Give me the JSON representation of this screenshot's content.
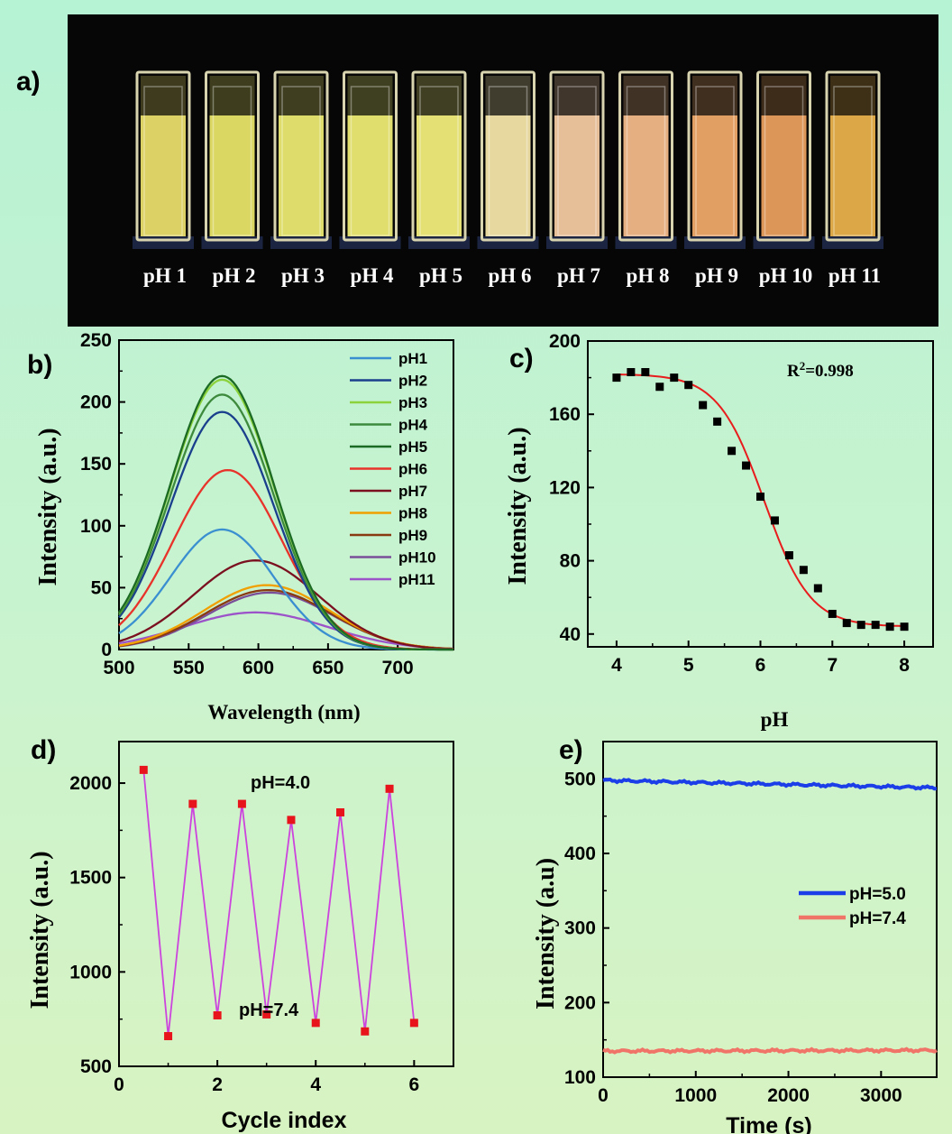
{
  "panel_labels": {
    "a": "a)",
    "b": "b)",
    "c": "c)",
    "d": "d)",
    "e": "e)"
  },
  "photo": {
    "cuvettes": [
      {
        "label": "pH 1",
        "color": "#e8dc6a"
      },
      {
        "label": "pH 2",
        "color": "#e6e468"
      },
      {
        "label": "pH 3",
        "color": "#eae870"
      },
      {
        "label": "pH 4",
        "color": "#ecea72"
      },
      {
        "label": "pH 5",
        "color": "#f0ec7a"
      },
      {
        "label": "pH 6",
        "color": "#f2e4a6"
      },
      {
        "label": "pH 7",
        "color": "#f2c8a0"
      },
      {
        "label": "pH 8",
        "color": "#f2b888"
      },
      {
        "label": "pH 9",
        "color": "#eea868"
      },
      {
        "label": "pH 10",
        "color": "#e89e5c"
      },
      {
        "label": "pH 11",
        "color": "#e8b04a"
      }
    ]
  },
  "chart_data": [
    {
      "id": "b",
      "type": "line",
      "xlabel": "Wavelength (nm)",
      "ylabel": "Intensity (a.u.)",
      "xlim": [
        500,
        740
      ],
      "ylim": [
        0,
        250
      ],
      "xticks": [
        500,
        550,
        600,
        650,
        700
      ],
      "yticks": [
        0,
        50,
        100,
        150,
        200,
        250
      ],
      "legend_position": "top-right",
      "series": [
        {
          "name": "pH1",
          "color": "#3a8fd0",
          "peak_x": 574,
          "peak_y": 97,
          "width": 37
        },
        {
          "name": "pH2",
          "color": "#1a3f8c",
          "peak_x": 574,
          "peak_y": 192,
          "width": 37
        },
        {
          "name": "pH3",
          "color": "#8cd23c",
          "peak_x": 574,
          "peak_y": 218,
          "width": 37
        },
        {
          "name": "pH4",
          "color": "#3d8a3d",
          "peak_x": 574,
          "peak_y": 206,
          "width": 37
        },
        {
          "name": "pH5",
          "color": "#1c6b24",
          "peak_x": 574,
          "peak_y": 221,
          "width": 37
        },
        {
          "name": "pH6",
          "color": "#e8332a",
          "peak_x": 578,
          "peak_y": 145,
          "width": 39
        },
        {
          "name": "pH7",
          "color": "#7a1020",
          "peak_x": 598,
          "peak_y": 72,
          "width": 45
        },
        {
          "name": "pH8",
          "color": "#f0a000",
          "peak_x": 606,
          "peak_y": 52,
          "width": 45
        },
        {
          "name": "pH9",
          "color": "#8a3a10",
          "peak_x": 607,
          "peak_y": 48,
          "width": 45
        },
        {
          "name": "pH10",
          "color": "#7a4f9a",
          "peak_x": 608,
          "peak_y": 46,
          "width": 45
        },
        {
          "name": "pH11",
          "color": "#9c52c8",
          "peak_x": 598,
          "peak_y": 30,
          "width": 52
        }
      ]
    },
    {
      "id": "c",
      "type": "scatter",
      "xlabel": "pH",
      "ylabel": "Intensity (a.u.)",
      "xlim": [
        3.6,
        8.4
      ],
      "ylim": [
        33,
        200
      ],
      "xticks": [
        4,
        5,
        6,
        7,
        8
      ],
      "yticks": [
        40,
        80,
        120,
        160,
        200
      ],
      "annotation": {
        "base": "R",
        "sup": "2",
        "rest": "=0.998"
      },
      "fit_color": "#e81c1c",
      "fit": {
        "top": 182,
        "bottom": 44,
        "x0": 6.05,
        "k": 0.32
      },
      "points": [
        [
          4.0,
          180
        ],
        [
          4.2,
          183
        ],
        [
          4.4,
          183
        ],
        [
          4.6,
          175
        ],
        [
          4.8,
          180
        ],
        [
          5.0,
          176
        ],
        [
          5.2,
          165
        ],
        [
          5.4,
          156
        ],
        [
          5.6,
          140
        ],
        [
          5.8,
          132
        ],
        [
          6.0,
          115
        ],
        [
          6.2,
          102
        ],
        [
          6.4,
          83
        ],
        [
          6.6,
          75
        ],
        [
          6.8,
          65
        ],
        [
          7.0,
          51
        ],
        [
          7.2,
          46
        ],
        [
          7.4,
          45
        ],
        [
          7.6,
          45
        ],
        [
          7.8,
          44
        ],
        [
          8.0,
          44
        ]
      ]
    },
    {
      "id": "d",
      "type": "line",
      "xlabel": "Cycle index",
      "ylabel": "Intensity (a.u.)",
      "xlim": [
        0,
        6.8
      ],
      "ylim": [
        500,
        2220
      ],
      "xticks": [
        0,
        2,
        4,
        6
      ],
      "yticks": [
        500,
        1000,
        1500,
        2000
      ],
      "line_color": "#cc44dd",
      "marker_color": "#e8141c",
      "annotations": [
        "pH=4.0",
        "pH=7.4"
      ],
      "points": [
        [
          0.5,
          2070
        ],
        [
          1.0,
          660
        ],
        [
          1.5,
          1890
        ],
        [
          2.0,
          770
        ],
        [
          2.5,
          1890
        ],
        [
          3.0,
          775
        ],
        [
          3.5,
          1805
        ],
        [
          4.0,
          730
        ],
        [
          4.5,
          1845
        ],
        [
          5.0,
          685
        ],
        [
          5.5,
          1970
        ],
        [
          6.0,
          730
        ]
      ]
    },
    {
      "id": "e",
      "type": "line",
      "xlabel": "Time (s)",
      "ylabel": "Intensity (a.u)",
      "xlim": [
        0,
        3600
      ],
      "ylim": [
        100,
        550
      ],
      "xticks": [
        0,
        1000,
        2000,
        3000
      ],
      "yticks": [
        100,
        200,
        300,
        400,
        500
      ],
      "legend_position": "center-right",
      "series": [
        {
          "name": "pH=5.0",
          "color": "#1c3ee8",
          "start": 498,
          "end": 488
        },
        {
          "name": "pH=7.4",
          "color": "#f07468",
          "start": 135,
          "end": 136
        }
      ]
    }
  ]
}
